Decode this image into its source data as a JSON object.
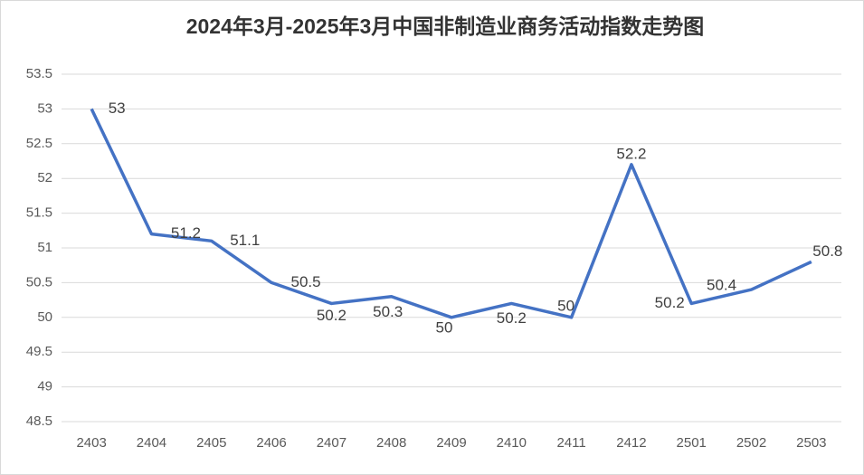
{
  "chart_data": {
    "type": "line",
    "title": "2024年3月-2025年3月中国非制造业商务活动指数走势图",
    "categories": [
      "2403",
      "2404",
      "2405",
      "2406",
      "2407",
      "2408",
      "2409",
      "2410",
      "2411",
      "2412",
      "2501",
      "2502",
      "2503"
    ],
    "series": [
      {
        "name": "非制造业商务活动指数",
        "color": "#4472c4",
        "values": [
          53,
          51.2,
          51.1,
          50.5,
          50.2,
          50.3,
          50,
          50.2,
          50,
          52.2,
          50.2,
          50.4,
          50.8
        ]
      }
    ],
    "ylim": [
      48.5,
      53.5
    ],
    "yticks": [
      48.5,
      49,
      49.5,
      50,
      50.5,
      51,
      51.5,
      52,
      52.5,
      53,
      53.5
    ],
    "grid": true
  }
}
